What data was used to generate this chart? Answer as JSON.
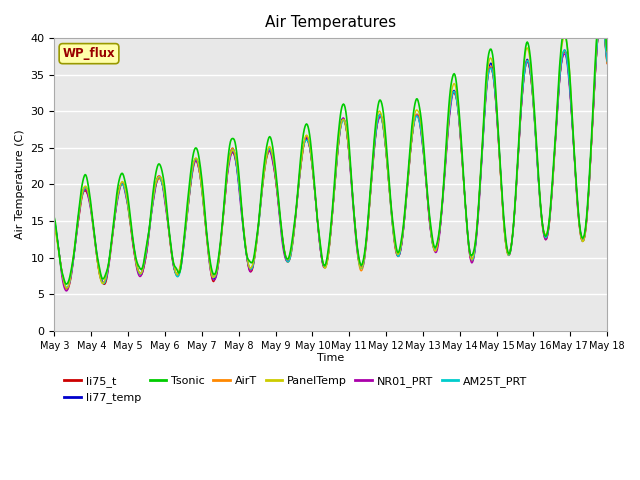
{
  "title": "Air Temperatures",
  "xlabel": "Time",
  "ylabel": "Air Temperature (C)",
  "ylim": [
    0,
    40
  ],
  "yticks": [
    0,
    5,
    10,
    15,
    20,
    25,
    30,
    35,
    40
  ],
  "wp_flux_label": "WP_flux",
  "series": [
    {
      "name": "li75_t",
      "color": "#cc0000",
      "lw": 1.0
    },
    {
      "name": "li77_temp",
      "color": "#0000cc",
      "lw": 1.0
    },
    {
      "name": "Tsonic",
      "color": "#00cc00",
      "lw": 1.2
    },
    {
      "name": "AirT",
      "color": "#ff8800",
      "lw": 1.0
    },
    {
      "name": "PanelTemp",
      "color": "#cccc00",
      "lw": 1.0
    },
    {
      "name": "NR01_PRT",
      "color": "#aa00aa",
      "lw": 1.0
    },
    {
      "name": "AM25T_PRT",
      "color": "#00cccc",
      "lw": 1.0
    }
  ],
  "axes_facecolor": "#e8e8e8",
  "grid_color": "white",
  "legend_fontsize": 8,
  "title_fontsize": 11,
  "figsize": [
    6.4,
    4.8
  ],
  "dpi": 100
}
